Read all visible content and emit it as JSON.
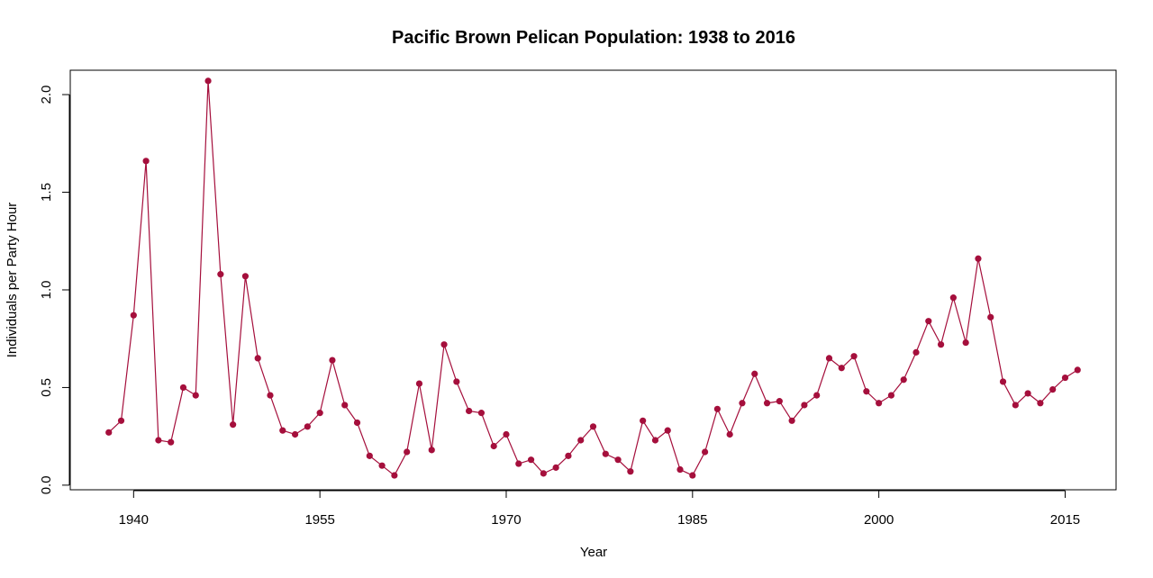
{
  "chart_data": {
    "type": "line",
    "title": "Pacific Brown Pelican Population: 1938 to 2016",
    "xlabel": "Year",
    "ylabel": "Individuals per Party Hour",
    "xlim": [
      1934.9,
      2019.1
    ],
    "ylim": [
      -0.0236,
      2.1248
    ],
    "xticks": [
      1940,
      1955,
      1970,
      1985,
      2000,
      2015
    ],
    "yticks": [
      0.0,
      0.5,
      1.0,
      1.5,
      2.0
    ],
    "ytick_labels": [
      "0.0",
      "0.5",
      "1.0",
      "1.5",
      "2.0"
    ],
    "grid": false,
    "legend": "none",
    "series": [
      {
        "color": "#a50f3c",
        "marker": "filled-circle",
        "x": [
          1938,
          1939,
          1940,
          1941,
          1942,
          1943,
          1944,
          1945,
          1946,
          1947,
          1948,
          1949,
          1950,
          1951,
          1952,
          1953,
          1954,
          1955,
          1956,
          1957,
          1958,
          1959,
          1960,
          1961,
          1962,
          1963,
          1964,
          1965,
          1966,
          1967,
          1968,
          1969,
          1970,
          1971,
          1972,
          1973,
          1974,
          1975,
          1976,
          1977,
          1978,
          1979,
          1980,
          1981,
          1982,
          1983,
          1984,
          1985,
          1986,
          1987,
          1988,
          1989,
          1990,
          1991,
          1992,
          1993,
          1994,
          1995,
          1996,
          1997,
          1998,
          1999,
          2000,
          2001,
          2002,
          2003,
          2004,
          2005,
          2006,
          2007,
          2008,
          2009,
          2010,
          2011,
          2012,
          2013,
          2014,
          2015,
          2016
        ],
        "values": [
          0.27,
          0.33,
          0.87,
          1.66,
          0.23,
          0.22,
          0.5,
          0.46,
          2.07,
          1.08,
          0.31,
          1.07,
          0.65,
          0.46,
          0.28,
          0.26,
          0.3,
          0.37,
          0.64,
          0.41,
          0.32,
          0.15,
          0.1,
          0.05,
          0.17,
          0.52,
          0.18,
          0.72,
          0.53,
          0.38,
          0.37,
          0.2,
          0.26,
          0.11,
          0.13,
          0.06,
          0.09,
          0.15,
          0.23,
          0.3,
          0.16,
          0.13,
          0.07,
          0.33,
          0.23,
          0.28,
          0.08,
          0.05,
          0.17,
          0.39,
          0.26,
          0.42,
          0.57,
          0.42,
          0.43,
          0.33,
          0.41,
          0.46,
          0.65,
          0.6,
          0.66,
          0.48,
          0.42,
          0.46,
          0.54,
          0.68,
          0.84,
          0.72,
          0.96,
          0.73,
          1.16,
          0.86,
          0.53,
          0.41,
          0.47,
          0.42,
          0.49,
          0.55,
          0.59
        ]
      }
    ]
  }
}
